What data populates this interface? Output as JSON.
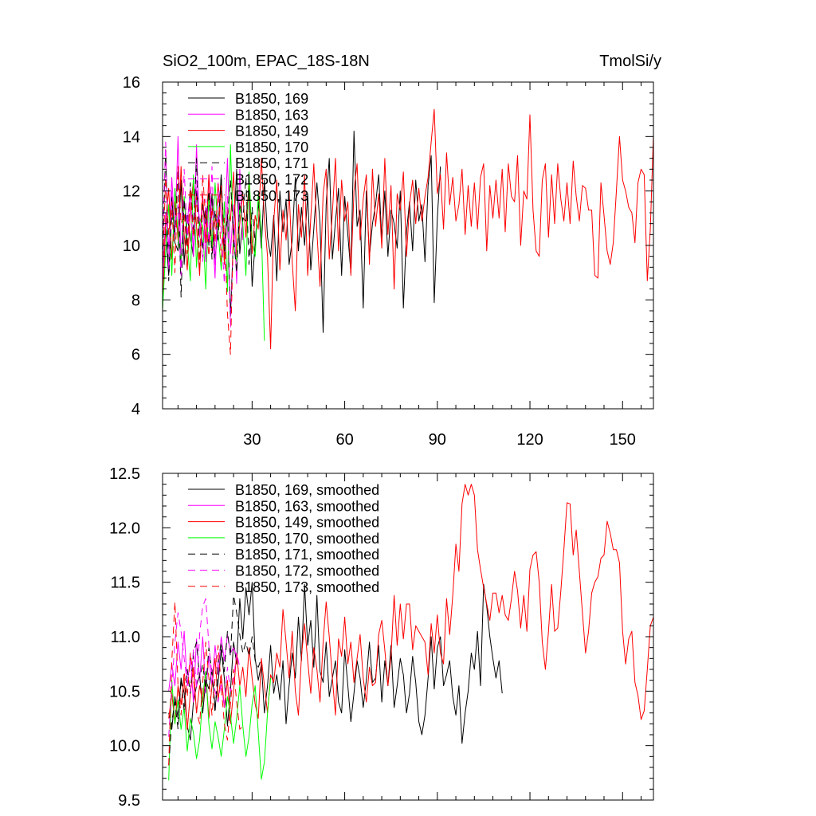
{
  "chart_data": [
    {
      "type": "line",
      "title_left": "SiO2_100m, EPAC_18S-18N",
      "title_right": "TmolSi/y",
      "xlim": [
        1,
        160
      ],
      "ylim": [
        4,
        16
      ],
      "xticks": [
        30,
        60,
        90,
        120,
        150
      ],
      "yticks": [
        4,
        6,
        8,
        10,
        12,
        14,
        16
      ],
      "legend_position": "top-left",
      "series": [
        {
          "name": "B1850, 169",
          "color": "#000000",
          "dash": "solid",
          "x_start": 1,
          "values": [
            9.2,
            10.6,
            8.9,
            11.8,
            10.1,
            9.8,
            12.4,
            9.3,
            11.1,
            10.3,
            9.6,
            12.0,
            10.8,
            9.9,
            11.3,
            10.0,
            11.9,
            9.5,
            10.7,
            12.6,
            9.4,
            11.2,
            7.4,
            10.4,
            12.8,
            9.7,
            11.0,
            10.9,
            12.2,
            8.5,
            10.1,
            11.6,
            9.9,
            12.4,
            10.3,
            9.6,
            11.1,
            8.7,
            12.0,
            10.5,
            11.7,
            9.3,
            10.2,
            12.5,
            9.8,
            11.4,
            10.0,
            11.9,
            9.1,
            10.6,
            12.3,
            10.8,
            6.8,
            11.5,
            13.2,
            9.5,
            10.9,
            12.1,
            8.9,
            11.8,
            10.4,
            9.0,
            14.2,
            10.7,
            11.3,
            7.7,
            12.0,
            9.6,
            10.8,
            11.5,
            12.6,
            10.2,
            12.0,
            9.6,
            11.3,
            10.8,
            9.9,
            12.0,
            7.7,
            10.5,
            11.6,
            9.8,
            12.4,
            10.9,
            11.5,
            9.4,
            12.2,
            13.3,
            7.9,
            11.0,
            12.9
          ]
        },
        {
          "name": "B1850, 163",
          "color": "#ff00ff",
          "dash": "solid",
          "x_start": 1,
          "values": [
            8.5,
            11.2,
            9.9,
            12.5,
            10.4,
            14.0,
            9.2,
            11.6,
            10.8,
            12.1,
            9.6,
            13.7,
            10.3,
            11.9,
            9.4,
            12.6,
            10.9,
            8.8,
            12.3,
            11.0,
            10.1,
            13.2,
            9.7,
            11.5,
            8.6,
            12.8,
            10.2
          ]
        },
        {
          "name": "B1850, 149",
          "color": "#ff0000",
          "dash": "solid",
          "x_start": 1,
          "values": [
            7.7,
            10.8,
            12.1,
            9.5,
            11.6,
            10.2,
            12.9,
            10.4,
            9.1,
            11.3,
            12.4,
            10.7,
            8.9,
            11.8,
            10.1,
            12.6,
            9.8,
            11.0,
            10.5,
            12.2,
            9.3,
            11.4,
            10.9,
            12.7,
            9.6,
            10.8,
            11.9,
            10.3,
            12.5,
            9.7,
            11.1,
            10.6,
            13.2,
            11.0,
            9.6,
            6.2,
            10.9,
            12.4,
            9.1,
            11.3,
            10.2,
            12.0,
            9.4,
            7.6,
            11.5,
            10.3,
            12.6,
            8.9,
            11.0,
            13.0,
            10.5,
            8.5,
            11.9,
            12.8,
            9.5,
            11.2,
            13.2,
            9.8,
            12.4,
            10.9,
            11.6,
            8.9,
            12.0,
            13.0,
            10.2,
            11.7,
            12.6,
            9.3,
            12.8,
            10.7,
            11.9,
            9.9,
            13.2,
            10.4,
            12.2,
            8.4,
            11.9,
            11.3,
            12.7,
            9.6,
            11.5,
            12.4,
            10.8,
            12.1,
            10.9,
            11.8,
            12.5,
            13.8,
            15.0,
            11.9,
            12.6,
            10.6,
            13.4,
            11.5,
            12.5,
            10.9,
            11.5,
            12.8,
            10.4,
            12.2,
            10.7,
            12.3,
            10.6,
            12.5,
            13.0,
            9.8,
            12.2,
            11.0,
            12.4,
            11.0,
            12.8,
            10.5,
            13.0,
            11.8,
            11.6,
            13.3,
            10.0,
            12.0,
            11.7,
            14.8,
            11.3,
            9.8,
            9.6,
            12.4,
            13.0,
            10.3,
            12.6,
            10.8,
            13.0,
            11.7,
            10.9,
            12.3,
            10.8,
            13.1,
            11.8,
            10.9,
            12.2,
            12.1,
            11.3,
            11.3,
            8.9,
            8.8,
            12.3,
            11.1,
            9.8,
            9.3,
            10.1,
            12.0,
            14.0,
            12.4,
            12.0,
            11.4,
            11.2,
            10.1,
            12.3,
            12.8,
            12.6,
            8.7,
            10.6,
            14.1,
            12.4
          ]
        },
        {
          "name": "B1850, 170",
          "color": "#00ff00",
          "dash": "solid",
          "x_start": 1,
          "values": [
            7.6,
            9.8,
            11.5,
            8.9,
            12.1,
            10.4,
            9.5,
            11.8,
            10.1,
            8.7,
            12.6,
            9.2,
            11.0,
            10.7,
            8.4,
            11.9,
            9.9,
            12.3,
            10.5,
            9.1,
            11.6,
            8.3,
            13.7,
            10.0,
            9.4,
            11.4,
            10.8,
            8.9,
            12.7,
            10.2,
            9.6,
            11.9,
            10.6,
            6.5
          ]
        },
        {
          "name": "B1850, 171",
          "color": "#000000",
          "dash": "dashed",
          "x_start": 1,
          "values": [
            9.4,
            13.5,
            8.7,
            11.2,
            10.5,
            12.8,
            8.1,
            11.7,
            9.9,
            12.3,
            10.6,
            13.2,
            9.2,
            11.5,
            10.8,
            12.0,
            9.5,
            11.3,
            10.2,
            12.6,
            9.8,
            11.1,
            12.4,
            10.3,
            9.0,
            11.6,
            10.9,
            12.5,
            9.3,
            11.4,
            10.1
          ]
        },
        {
          "name": "B1850, 172",
          "color": "#ff00ff",
          "dash": "dashed",
          "x_start": 1,
          "values": [
            10.2,
            13.8,
            9.1,
            12.0,
            10.7,
            11.5,
            8.9,
            12.8,
            10.3,
            11.9,
            9.6,
            12.4,
            10.8,
            9.4,
            11.7,
            10.1,
            12.9,
            9.3,
            11.2,
            10.6,
            8.6,
            11.8,
            7.0,
            10.5
          ]
        },
        {
          "name": "B1850, 173",
          "color": "#ff0000",
          "dash": "dashed",
          "x_start": 1,
          "values": [
            9.1,
            12.5,
            10.4,
            11.6,
            9.0,
            12.9,
            10.8,
            11.2,
            9.7,
            12.1,
            10.3,
            11.8,
            9.2,
            12.6,
            10.9,
            9.6,
            11.4,
            10.1,
            12.3,
            9.4,
            11.0,
            7.5,
            6.0,
            10.8
          ]
        }
      ]
    },
    {
      "type": "line",
      "xlim": [
        1,
        160
      ],
      "ylim": [
        9.5,
        12.5
      ],
      "xticks": [
        30,
        60,
        90,
        120,
        150
      ],
      "yticks": [
        9.5,
        10.0,
        10.5,
        11.0,
        11.5,
        12.0,
        12.5
      ],
      "legend_position": "top-left",
      "series": [
        {
          "name": "B1850, 169, smoothed",
          "color": "#000000",
          "dash": "solid",
          "x_start": 3,
          "values": [
            10.3,
            10.15,
            10.45,
            10.25,
            10.62,
            10.48,
            10.18,
            10.05,
            10.4,
            10.55,
            10.65,
            10.3,
            10.6,
            10.52,
            10.7,
            10.35,
            10.58,
            10.88,
            10.62,
            10.18,
            10.5,
            10.95,
            10.75,
            11.35,
            10.98,
            11.45,
            11.2,
            11.5,
            10.8,
            10.6,
            10.75,
            10.3,
            10.55,
            10.92,
            10.48,
            10.65,
            10.42,
            10.78,
            10.2,
            10.55,
            10.85,
            10.62,
            11.18,
            10.78,
            11.48,
            10.92,
            11.15,
            10.72,
            11.38,
            10.68,
            10.58,
            10.95,
            10.45,
            10.62,
            10.78,
            10.4,
            10.3,
            10.88,
            10.55,
            10.22,
            10.48,
            10.78,
            10.62,
            10.35,
            10.6,
            10.95,
            10.58,
            10.62,
            10.92,
            10.4,
            10.78,
            10.55,
            10.92,
            10.35,
            10.55,
            10.8,
            10.65,
            10.3,
            10.48,
            10.82,
            10.58,
            10.22,
            10.1,
            10.28,
            10.62,
            11.0,
            10.52,
            10.9,
            11.0,
            10.55,
            10.65,
            10.78,
            10.45,
            10.28,
            10.55,
            10.02,
            10.3,
            10.5,
            10.85,
            10.7,
            11.05,
            10.55,
            11.48,
            11.28,
            11.0,
            10.8,
            10.62,
            10.78,
            10.48
          ]
        },
        {
          "name": "B1850, 163, smoothed",
          "color": "#ff00ff",
          "dash": "solid",
          "x_start": 3,
          "values": [
            10.5,
            10.75,
            10.55,
            10.95,
            10.7,
            11.05,
            10.55,
            10.82,
            10.4,
            10.98,
            10.6,
            11.0,
            10.48,
            10.82,
            10.55,
            10.92,
            10.65,
            11.0,
            10.78,
            11.02,
            10.85,
            10.9,
            10.82
          ]
        },
        {
          "name": "B1850, 149, smoothed",
          "color": "#ff0000",
          "dash": "solid",
          "x_start": 3,
          "values": [
            10.25,
            10.48,
            10.2,
            10.55,
            10.38,
            10.62,
            10.15,
            10.48,
            10.72,
            10.3,
            10.55,
            10.4,
            10.68,
            10.25,
            10.55,
            10.8,
            10.42,
            10.65,
            10.35,
            10.6,
            10.2,
            10.5,
            10.85,
            10.55,
            10.72,
            10.45,
            10.9,
            10.62,
            10.38,
            10.25,
            10.8,
            10.55,
            10.3,
            10.65,
            10.58,
            10.85,
            10.72,
            11.25,
            10.95,
            10.62,
            11.05,
            10.5,
            10.28,
            10.82,
            11.12,
            10.78,
            10.48,
            10.9,
            10.7,
            10.4,
            10.95,
            11.32,
            11.0,
            10.62,
            10.28,
            10.98,
            10.82,
            11.18,
            10.75,
            10.95,
            10.58,
            10.8,
            11.02,
            10.62,
            10.4,
            10.72,
            10.55,
            10.58,
            11.02,
            11.15,
            10.88,
            10.55,
            10.82,
            11.38,
            10.92,
            11.3,
            10.98,
            11.3,
            11.3,
            10.88,
            11.1,
            11.05,
            11.0,
            10.95,
            10.65,
            11.12,
            10.85,
            11.2,
            10.85,
            10.75,
            11.35,
            11.02,
            11.38,
            11.85,
            11.6,
            12.22,
            12.4,
            12.3,
            12.4,
            12.3,
            11.8,
            11.62,
            11.45,
            11.3,
            11.15,
            11.4,
            11.4,
            11.22,
            11.38,
            11.2,
            11.15,
            11.35,
            11.6,
            11.42,
            11.08,
            11.38,
            11.05,
            11.62,
            11.75,
            11.78,
            11.5,
            10.95,
            10.7,
            11.05,
            11.48,
            11.05,
            11.08,
            11.42,
            11.8,
            12.23,
            12.22,
            11.75,
            11.98,
            11.6,
            11.22,
            10.85,
            11.05,
            11.4,
            11.5,
            11.55,
            11.72,
            11.75,
            12.06,
            11.95,
            11.8,
            11.8,
            11.68,
            11.05,
            10.75,
            10.98,
            11.05,
            10.58,
            10.46,
            10.24,
            10.32,
            10.7,
            11.1,
            11.18,
            11.15,
            11.25,
            11.62,
            11.8,
            11.62,
            11.62,
            11.25,
            10.82,
            11.25,
            11.62,
            11.74
          ]
        },
        {
          "name": "B1850, 170, smoothed",
          "color": "#00ff00",
          "dash": "solid",
          "x_start": 3,
          "values": [
            9.68,
            10.6,
            10.2,
            10.42,
            10.15,
            10.35,
            9.95,
            10.25,
            10.12,
            9.88,
            10.05,
            10.45,
            10.68,
            10.2,
            9.97,
            10.22,
            10.08,
            9.9,
            10.15,
            10.45,
            10.28,
            10.02,
            10.25,
            10.55,
            10.18,
            9.9,
            10.08,
            10.38,
            10.55,
            10.12,
            9.69,
            9.85,
            10.3,
            10.62
          ]
        },
        {
          "name": "B1850, 171, smoothed",
          "color": "#000000",
          "dash": "dashed",
          "x_start": 3,
          "values": [
            9.82,
            10.22,
            10.4,
            10.15,
            10.62,
            10.32,
            10.7,
            10.48,
            10.85,
            10.95,
            10.62,
            10.75,
            10.52,
            10.9,
            10.68,
            10.3,
            10.75,
            10.95,
            10.68,
            11.05,
            10.82,
            11.38,
            11.22,
            11.02,
            10.85,
            10.95,
            10.82,
            11.0,
            10.78,
            10.72,
            10.8
          ]
        },
        {
          "name": "B1850, 172, smoothed",
          "color": "#ff00ff",
          "dash": "dashed",
          "x_start": 3,
          "values": [
            10.08,
            10.55,
            10.95,
            11.22,
            11.05,
            10.8,
            10.58,
            10.5,
            10.88,
            10.52,
            11.02,
            11.28,
            11.35,
            10.92,
            10.65,
            10.5,
            10.4,
            10.58,
            10.35,
            10.72,
            10.5,
            10.6,
            10.85,
            10.72
          ]
        },
        {
          "name": "B1850, 173, smoothed",
          "color": "#ff0000",
          "dash": "dashed",
          "x_start": 3,
          "values": [
            9.82,
            10.78,
            11.32,
            10.55,
            10.28,
            10.68,
            10.45,
            10.85,
            10.62,
            10.32,
            10.2,
            10.58,
            10.95,
            10.62,
            10.28,
            10.62,
            10.92,
            10.55,
            10.2,
            10.05,
            10.38,
            10.7,
            10.4,
            10.15,
            10.18,
            10.18
          ]
        }
      ]
    }
  ],
  "panels": [
    {
      "title_left": "SiO2_100m, EPAC_18S-18N",
      "title_right": "TmolSi/y"
    },
    {
      "title_left": "",
      "title_right": ""
    }
  ]
}
